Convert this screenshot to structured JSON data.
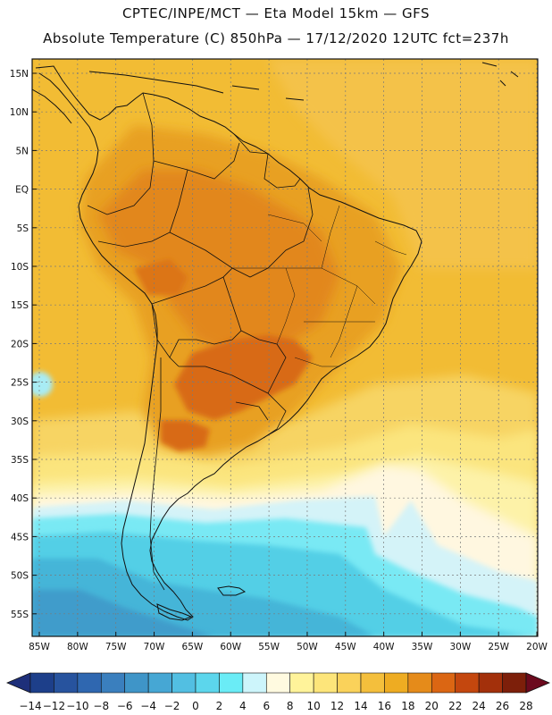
{
  "header": {
    "line1": "CPTEC/INPE/MCT —  Eta Model 15km — GFS",
    "line2": "Absolute Temperature (C) 850hPa — 17/12/2020 12UTC fct=237h"
  },
  "map": {
    "variable": "Absolute Temperature (C) 850hPa",
    "lat_labels": [
      "15N",
      "10N",
      "5N",
      "EQ",
      "5S",
      "10S",
      "15S",
      "20S",
      "25S",
      "30S",
      "35S",
      "40S",
      "45S",
      "50S",
      "55S"
    ],
    "lon_labels": [
      "85W",
      "80W",
      "75W",
      "70W",
      "65W",
      "60W",
      "55W",
      "50W",
      "45W",
      "40W",
      "35W",
      "30W",
      "25W",
      "20W"
    ]
  },
  "colorbar": {
    "labels": [
      "-14",
      "-12",
      "-10",
      "-8",
      "-6",
      "-4",
      "-2",
      "0",
      "2",
      "4",
      "6",
      "8",
      "10",
      "12",
      "14",
      "16",
      "18",
      "20",
      "22",
      "24",
      "26",
      "28"
    ],
    "colors": [
      "#1d3f8a",
      "#27539e",
      "#2f67b0",
      "#3a7fbe",
      "#3f95c8",
      "#46a7d4",
      "#52bfe2",
      "#5cd6ec",
      "#6aecf6",
      "#cdf5fb",
      "#fffae0",
      "#fff39a",
      "#fde57a",
      "#fad25a",
      "#f4bf3c",
      "#eeac22",
      "#e58b1a",
      "#db6613",
      "#c4470e",
      "#a3300b",
      "#7d1f0a"
    ],
    "under_color": "#1e2f7a",
    "over_color": "#6c0a1e"
  }
}
